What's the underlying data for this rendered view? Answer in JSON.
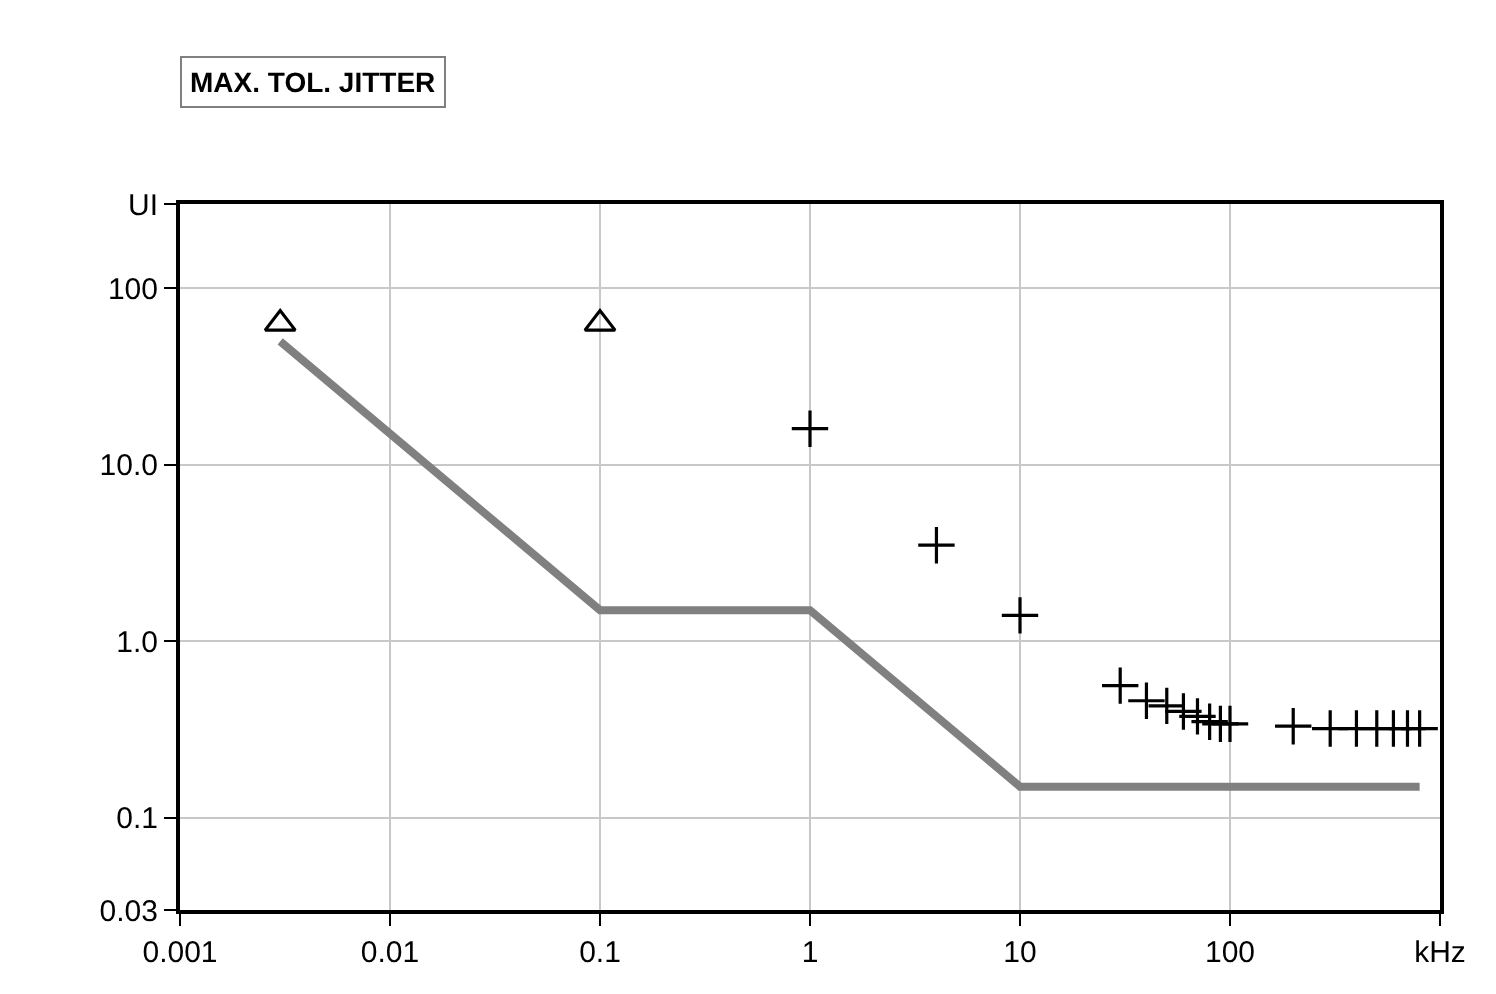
{
  "chart_data": {
    "type": "scatter",
    "title": "MAX. TOL. JITTER",
    "log": "xy",
    "grid": true,
    "xlim": [
      0.001,
      1000
    ],
    "xticks": [
      0.001,
      0.01,
      0.1,
      1,
      10,
      100,
      {
        "value": 1000,
        "label": "kHz"
      }
    ],
    "ylim": [
      0.03,
      300
    ],
    "yticks": [
      0.03,
      {
        "value": 0.1,
        "label": "0.1"
      },
      {
        "value": 1,
        "label": "1.0"
      },
      {
        "value": 10,
        "label": "10.0"
      },
      100,
      {
        "value": 300,
        "label": "UI"
      }
    ],
    "series": [
      {
        "type": "line",
        "color": "#808080",
        "marker": "none",
        "line_style": "solid",
        "x": [
          0.003,
          0.1,
          1,
          10,
          800
        ],
        "values": [
          50,
          1.5,
          1.5,
          0.15,
          0.15
        ]
      },
      {
        "type": "scatter",
        "color": "#000000",
        "marker": "triangle",
        "x": [
          0.003,
          0.1
        ],
        "values": [
          63,
          63
        ]
      },
      {
        "color": "#000000",
        "marker": "cross",
        "x": [
          1,
          4,
          10,
          30,
          40,
          50,
          60,
          70,
          80,
          90,
          100,
          200,
          300,
          400,
          500,
          600,
          700,
          800
        ],
        "values": [
          16,
          3.5,
          1.4,
          0.56,
          0.46,
          0.43,
          0.4,
          0.375,
          0.35,
          0.34,
          0.34,
          0.33,
          0.32,
          0.32,
          0.32,
          0.32,
          0.32,
          0.32
        ]
      }
    ]
  }
}
